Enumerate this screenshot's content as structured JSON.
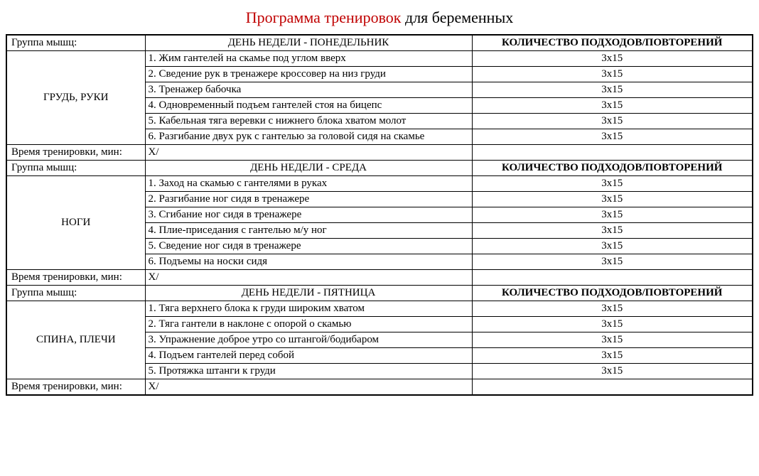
{
  "title_red": "Программа тренировок",
  "title_black": " для беременных",
  "labels": {
    "group": "Группа мышц:",
    "day_prefix": "ДЕНЬ НЕДЕЛИ - ",
    "reps_header": "КОЛИЧЕСТВО ПОДХОДОВ/ПОВТОРЕНИЙ",
    "time": "Время тренировки, мин:",
    "time_value": "X/"
  },
  "colors": {
    "title_accent": "#c00000",
    "section_border": "#4b2a7a",
    "text": "#000000",
    "background": "#ffffff"
  },
  "days": [
    {
      "day": "ПОНЕДЕЛЬНИК",
      "muscle": "ГРУДЬ, РУКИ",
      "exercises": [
        {
          "n": "1",
          "name": "Жим гантелей на скамье под углом вверх",
          "reps": "3x15"
        },
        {
          "n": "2",
          "name": "Сведение рук в тренажере кроссовер на низ груди",
          "reps": "3x15"
        },
        {
          "n": "3",
          "name": "Тренажер бабочка",
          "reps": "3x15"
        },
        {
          "n": "4",
          "name": "Одновременный подъем гантелей стоя на бицепс",
          "reps": "3x15"
        },
        {
          "n": "5",
          "name": "Кабельная тяга веревки с нижнего блока хватом молот",
          "reps": "3x15"
        },
        {
          "n": "6",
          "name": "Разгибание двух рук с гантелью за головой сидя на скамье",
          "reps": "3x15"
        }
      ]
    },
    {
      "day": "СРЕДА",
      "muscle": "НОГИ",
      "exercises": [
        {
          "n": "1",
          "name": "Заход на скамью с гантелями в руках",
          "reps": "3x15"
        },
        {
          "n": "2",
          "name": "Разгибание ног сидя в тренажере",
          "reps": "3x15"
        },
        {
          "n": "3",
          "name": "Сгибание ног сидя в тренажере",
          "reps": "3x15"
        },
        {
          "n": "4",
          "name": "Плие-приседания с гантелью м/у ног",
          "reps": "3x15"
        },
        {
          "n": "5",
          "name": "Сведение ног сидя в тренажере",
          "reps": "3x15"
        },
        {
          "n": "6",
          "name": "Подъемы на носки сидя",
          "reps": "3x15"
        }
      ]
    },
    {
      "day": "ПЯТНИЦА",
      "muscle": "СПИНА, ПЛЕЧИ",
      "exercises": [
        {
          "n": "1",
          "name": "Тяга верхнего блока к груди широким хватом",
          "reps": "3x15"
        },
        {
          "n": "2",
          "name": "Тяга гантели в наклоне с опорой о скамью",
          "reps": "3x15"
        },
        {
          "n": "3",
          "name": "Упражнение доброе утро со штангой/бодибаром",
          "reps": "3x15"
        },
        {
          "n": "4",
          "name": "Подъем гантелей перед собой",
          "reps": "3x15"
        },
        {
          "n": "5",
          "name": "Протяжка штанги к груди",
          "reps": "3x15"
        }
      ]
    }
  ]
}
